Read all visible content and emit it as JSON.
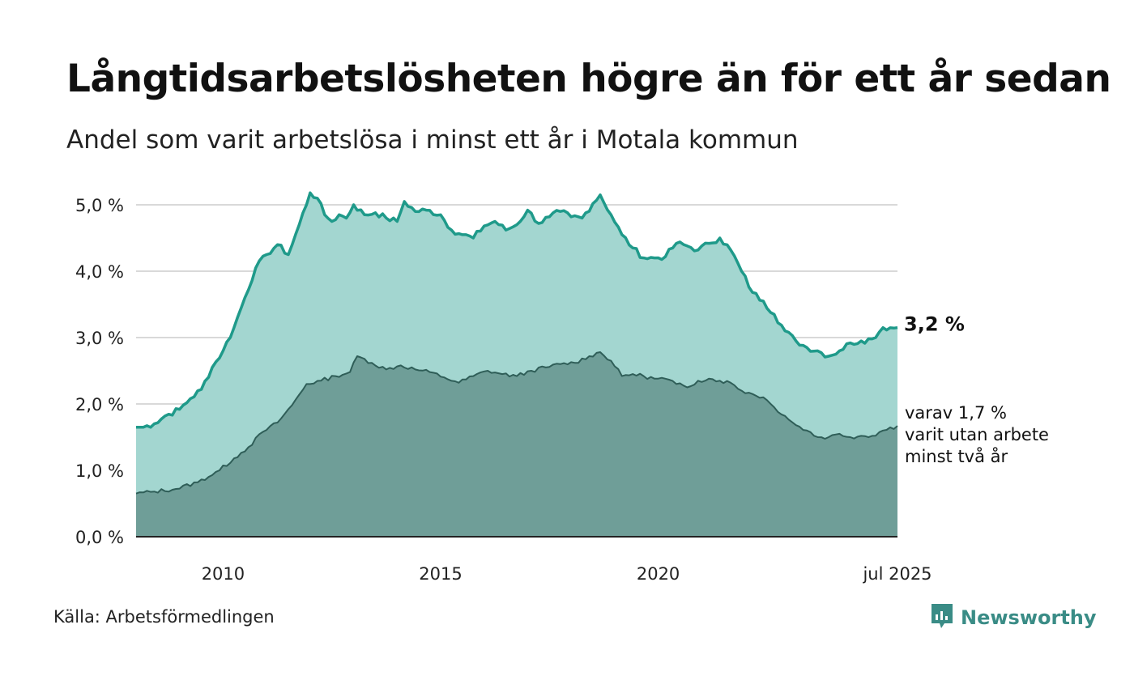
{
  "title": "Långtidsarbetslösheten högre än för ett år sedan",
  "subtitle": "Andel som varit arbetslösa i minst ett år i Motala kommun",
  "source": "Källa: Arbetsförmedlingen",
  "brand": {
    "name": "Newsworthy",
    "icon": "newsworthy-logo-icon",
    "color": "#3a8c86"
  },
  "chart_data": {
    "type": "area",
    "ylim": [
      0,
      5
    ],
    "x_range": [
      "2008-01",
      "2025-07"
    ],
    "y_ticks": [
      {
        "value": 0,
        "label": "0,0 %"
      },
      {
        "value": 1,
        "label": "1,0 %"
      },
      {
        "value": 2,
        "label": "2,0 %"
      },
      {
        "value": 3,
        "label": "3,0 %"
      },
      {
        "value": 4,
        "label": "4,0 %"
      },
      {
        "value": 5,
        "label": "5,0 %"
      }
    ],
    "x_ticks": [
      {
        "value": "2010-01",
        "label": "2010"
      },
      {
        "value": "2015-01",
        "label": "2015"
      },
      {
        "value": "2020-01",
        "label": "2020"
      },
      {
        "value": "2025-07",
        "label": "jul 2025"
      }
    ],
    "grid": true,
    "colors": {
      "total_fill": "#a3d6d0",
      "total_line": "#1f9a8a",
      "long_fill": "#6f9e98",
      "long_line": "#2f5e58",
      "grid": "#d9d9d9",
      "axis": "#222222"
    },
    "series": [
      {
        "key": "total",
        "end_label": "3,2 %",
        "points": [
          [
            "2008-01",
            1.65
          ],
          [
            "2008-03",
            1.65
          ],
          [
            "2008-06",
            1.7
          ],
          [
            "2008-09",
            1.82
          ],
          [
            "2009-01",
            1.92
          ],
          [
            "2009-04",
            2.08
          ],
          [
            "2009-07",
            2.22
          ],
          [
            "2009-10",
            2.55
          ],
          [
            "2010-01",
            2.8
          ],
          [
            "2010-04",
            3.15
          ],
          [
            "2010-07",
            3.6
          ],
          [
            "2010-10",
            4.05
          ],
          [
            "2011-01",
            4.25
          ],
          [
            "2011-04",
            4.4
          ],
          [
            "2011-07",
            4.25
          ],
          [
            "2011-10",
            4.7
          ],
          [
            "2012-01",
            5.18
          ],
          [
            "2012-03",
            5.1
          ],
          [
            "2012-05",
            4.85
          ],
          [
            "2012-07",
            4.75
          ],
          [
            "2012-09",
            4.85
          ],
          [
            "2012-11",
            4.8
          ],
          [
            "2013-01",
            5.0
          ],
          [
            "2013-04",
            4.85
          ],
          [
            "2013-07",
            4.88
          ],
          [
            "2013-10",
            4.8
          ],
          [
            "2014-01",
            4.75
          ],
          [
            "2014-03",
            5.05
          ],
          [
            "2014-06",
            4.9
          ],
          [
            "2014-09",
            4.92
          ],
          [
            "2015-01",
            4.85
          ],
          [
            "2015-04",
            4.62
          ],
          [
            "2015-07",
            4.55
          ],
          [
            "2015-10",
            4.5
          ],
          [
            "2016-01",
            4.68
          ],
          [
            "2016-04",
            4.75
          ],
          [
            "2016-07",
            4.62
          ],
          [
            "2016-10",
            4.7
          ],
          [
            "2017-01",
            4.92
          ],
          [
            "2017-04",
            4.72
          ],
          [
            "2017-07",
            4.82
          ],
          [
            "2017-10",
            4.9
          ],
          [
            "2018-01",
            4.82
          ],
          [
            "2018-04",
            4.8
          ],
          [
            "2018-07",
            5.02
          ],
          [
            "2018-09",
            5.15
          ],
          [
            "2018-12",
            4.85
          ],
          [
            "2019-03",
            4.55
          ],
          [
            "2019-06",
            4.35
          ],
          [
            "2019-09",
            4.2
          ],
          [
            "2019-12",
            4.2
          ],
          [
            "2020-03",
            4.22
          ],
          [
            "2020-06",
            4.42
          ],
          [
            "2020-09",
            4.38
          ],
          [
            "2020-12",
            4.32
          ],
          [
            "2021-03",
            4.42
          ],
          [
            "2021-06",
            4.5
          ],
          [
            "2021-09",
            4.32
          ],
          [
            "2021-12",
            4.0
          ],
          [
            "2022-03",
            3.68
          ],
          [
            "2022-06",
            3.55
          ],
          [
            "2022-09",
            3.35
          ],
          [
            "2022-12",
            3.1
          ],
          [
            "2023-03",
            2.95
          ],
          [
            "2023-06",
            2.85
          ],
          [
            "2023-09",
            2.8
          ],
          [
            "2023-12",
            2.72
          ],
          [
            "2024-03",
            2.8
          ],
          [
            "2024-06",
            2.92
          ],
          [
            "2024-09",
            2.95
          ],
          [
            "2024-12",
            2.98
          ],
          [
            "2025-03",
            3.15
          ],
          [
            "2025-07",
            3.15
          ]
        ]
      },
      {
        "key": "long",
        "end_label": "varav 1,7 %",
        "end_label_lines": [
          "varav 1,7 %",
          "varit utan arbete",
          "minst två år"
        ],
        "points": [
          [
            "2008-01",
            0.65
          ],
          [
            "2008-06",
            0.68
          ],
          [
            "2008-12",
            0.72
          ],
          [
            "2009-06",
            0.82
          ],
          [
            "2009-12",
            1.0
          ],
          [
            "2010-04",
            1.18
          ],
          [
            "2010-08",
            1.35
          ],
          [
            "2010-12",
            1.58
          ],
          [
            "2011-04",
            1.72
          ],
          [
            "2011-08",
            1.98
          ],
          [
            "2011-12",
            2.3
          ],
          [
            "2012-04",
            2.35
          ],
          [
            "2012-08",
            2.42
          ],
          [
            "2012-12",
            2.48
          ],
          [
            "2013-02",
            2.72
          ],
          [
            "2013-06",
            2.62
          ],
          [
            "2013-10",
            2.52
          ],
          [
            "2014-02",
            2.58
          ],
          [
            "2014-06",
            2.52
          ],
          [
            "2014-10",
            2.48
          ],
          [
            "2015-02",
            2.4
          ],
          [
            "2015-06",
            2.32
          ],
          [
            "2015-10",
            2.42
          ],
          [
            "2016-02",
            2.5
          ],
          [
            "2016-06",
            2.45
          ],
          [
            "2016-10",
            2.42
          ],
          [
            "2017-02",
            2.5
          ],
          [
            "2017-06",
            2.55
          ],
          [
            "2017-10",
            2.6
          ],
          [
            "2018-02",
            2.62
          ],
          [
            "2018-06",
            2.72
          ],
          [
            "2018-09",
            2.78
          ],
          [
            "2018-12",
            2.65
          ],
          [
            "2019-03",
            2.42
          ],
          [
            "2019-06",
            2.45
          ],
          [
            "2019-09",
            2.42
          ],
          [
            "2019-12",
            2.38
          ],
          [
            "2020-03",
            2.38
          ],
          [
            "2020-06",
            2.3
          ],
          [
            "2020-09",
            2.25
          ],
          [
            "2020-12",
            2.35
          ],
          [
            "2021-03",
            2.38
          ],
          [
            "2021-06",
            2.35
          ],
          [
            "2021-09",
            2.32
          ],
          [
            "2021-12",
            2.2
          ],
          [
            "2022-03",
            2.15
          ],
          [
            "2022-06",
            2.1
          ],
          [
            "2022-09",
            1.95
          ],
          [
            "2022-12",
            1.82
          ],
          [
            "2023-03",
            1.68
          ],
          [
            "2023-06",
            1.6
          ],
          [
            "2023-09",
            1.5
          ],
          [
            "2023-12",
            1.5
          ],
          [
            "2024-03",
            1.55
          ],
          [
            "2024-06",
            1.5
          ],
          [
            "2024-09",
            1.52
          ],
          [
            "2024-12",
            1.52
          ],
          [
            "2025-03",
            1.6
          ],
          [
            "2025-07",
            1.67
          ]
        ]
      }
    ]
  }
}
